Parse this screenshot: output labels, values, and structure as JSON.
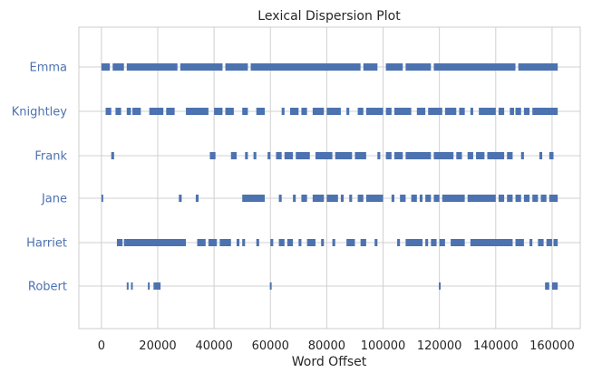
{
  "chart_data": {
    "type": "scatter",
    "title": "Lexical Dispersion Plot",
    "xlabel": "Word Offset",
    "ylabel": "",
    "xlim": [
      -8000,
      170000
    ],
    "xticks": [
      0,
      20000,
      40000,
      60000,
      80000,
      100000,
      120000,
      140000,
      160000
    ],
    "xtick_labels": [
      "0",
      "20000",
      "40000",
      "60000",
      "80000",
      "100000",
      "120000",
      "140000",
      "160000"
    ],
    "grid": true,
    "marker": "|",
    "colors": {
      "marker": "#4c72b0",
      "ytick_text": "#4c72b0",
      "grid": "#d0d0d0",
      "frame": "#cccccc",
      "text": "#262626"
    },
    "words": [
      "Emma",
      "Knightley",
      "Frank",
      "Jane",
      "Harriet",
      "Robert"
    ],
    "segments": {
      "Emma": [
        [
          0,
          3000
        ],
        [
          4000,
          8000
        ],
        [
          9000,
          27000
        ],
        [
          28000,
          43000
        ],
        [
          44000,
          52000
        ],
        [
          53000,
          92000
        ],
        [
          93000,
          98000
        ],
        [
          101000,
          107000
        ],
        [
          108000,
          117000
        ],
        [
          118000,
          147000
        ],
        [
          148000,
          162000
        ]
      ],
      "Knightley": [
        [
          1500,
          3500
        ],
        [
          5000,
          7000
        ],
        [
          9000,
          10500
        ],
        [
          11000,
          14000
        ],
        [
          17000,
          22000
        ],
        [
          23000,
          26000
        ],
        [
          30000,
          38000
        ],
        [
          40000,
          43000
        ],
        [
          44000,
          47000
        ],
        [
          50000,
          52000
        ],
        [
          55000,
          58000
        ],
        [
          64000,
          65000
        ],
        [
          67000,
          70000
        ],
        [
          71000,
          73000
        ],
        [
          75000,
          79000
        ],
        [
          80000,
          85000
        ],
        [
          87000,
          88000
        ],
        [
          91000,
          93000
        ],
        [
          94000,
          100000
        ],
        [
          101000,
          103000
        ],
        [
          104000,
          110000
        ],
        [
          112000,
          115000
        ],
        [
          116000,
          121000
        ],
        [
          122000,
          126000
        ],
        [
          127000,
          129000
        ],
        [
          131000,
          132000
        ],
        [
          134000,
          140000
        ],
        [
          141000,
          143000
        ],
        [
          145000,
          146500
        ],
        [
          147000,
          149000
        ],
        [
          150000,
          152000
        ],
        [
          153000,
          162000
        ]
      ],
      "Frank": [
        [
          3500,
          4500
        ],
        [
          38500,
          40500
        ],
        [
          46000,
          48000
        ],
        [
          51000,
          52000
        ],
        [
          54000,
          55000
        ],
        [
          59000,
          60000
        ],
        [
          62000,
          64000
        ],
        [
          65000,
          68000
        ],
        [
          69000,
          74000
        ],
        [
          76000,
          82000
        ],
        [
          83000,
          89000
        ],
        [
          90000,
          94000
        ],
        [
          98000,
          99000
        ],
        [
          101000,
          103000
        ],
        [
          104000,
          107000
        ],
        [
          108000,
          117000
        ],
        [
          118000,
          125000
        ],
        [
          126000,
          128000
        ],
        [
          130000,
          132000
        ],
        [
          133000,
          136000
        ],
        [
          137000,
          143000
        ],
        [
          144000,
          146000
        ],
        [
          149000,
          150000
        ],
        [
          155500,
          156500
        ],
        [
          159000,
          160500
        ]
      ],
      "Jane": [
        [
          0,
          500
        ],
        [
          27500,
          28500
        ],
        [
          33500,
          34500
        ],
        [
          50000,
          58000
        ],
        [
          63000,
          64000
        ],
        [
          68000,
          69000
        ],
        [
          71000,
          73000
        ],
        [
          75000,
          79000
        ],
        [
          80000,
          84000
        ],
        [
          85000,
          86000
        ],
        [
          88000,
          89000
        ],
        [
          91000,
          93000
        ],
        [
          94000,
          100000
        ],
        [
          103000,
          104000
        ],
        [
          106000,
          108000
        ],
        [
          110000,
          112000
        ],
        [
          113000,
          114000
        ],
        [
          115000,
          117000
        ],
        [
          118000,
          120000
        ],
        [
          121000,
          129000
        ],
        [
          130000,
          140000
        ],
        [
          141000,
          143000
        ],
        [
          144000,
          146000
        ],
        [
          147000,
          149000
        ],
        [
          150000,
          152000
        ],
        [
          153000,
          155000
        ],
        [
          156000,
          158000
        ],
        [
          159000,
          162000
        ]
      ],
      "Harriet": [
        [
          5500,
          7500
        ],
        [
          8000,
          30000
        ],
        [
          34000,
          37000
        ],
        [
          38000,
          41000
        ],
        [
          42000,
          46000
        ],
        [
          48000,
          49000
        ],
        [
          50000,
          51000
        ],
        [
          55000,
          56000
        ],
        [
          60000,
          61000
        ],
        [
          63000,
          65000
        ],
        [
          66000,
          68000
        ],
        [
          70000,
          71000
        ],
        [
          73000,
          76000
        ],
        [
          78000,
          79000
        ],
        [
          82000,
          83000
        ],
        [
          87000,
          90000
        ],
        [
          92000,
          94000
        ],
        [
          97000,
          98000
        ],
        [
          105000,
          106000
        ],
        [
          108000,
          114000
        ],
        [
          115000,
          116000
        ],
        [
          117000,
          119000
        ],
        [
          120000,
          122000
        ],
        [
          124000,
          129000
        ],
        [
          131000,
          146000
        ],
        [
          147000,
          150000
        ],
        [
          152000,
          153000
        ],
        [
          155000,
          157000
        ],
        [
          158000,
          160000
        ],
        [
          160500,
          162000
        ]
      ],
      "Robert": [
        [
          9000,
          9500
        ],
        [
          10500,
          11000
        ],
        [
          16500,
          17000
        ],
        [
          18500,
          21000
        ],
        [
          59800,
          60300
        ],
        [
          119800,
          120300
        ],
        [
          157500,
          159000
        ],
        [
          160000,
          162000
        ]
      ]
    }
  }
}
